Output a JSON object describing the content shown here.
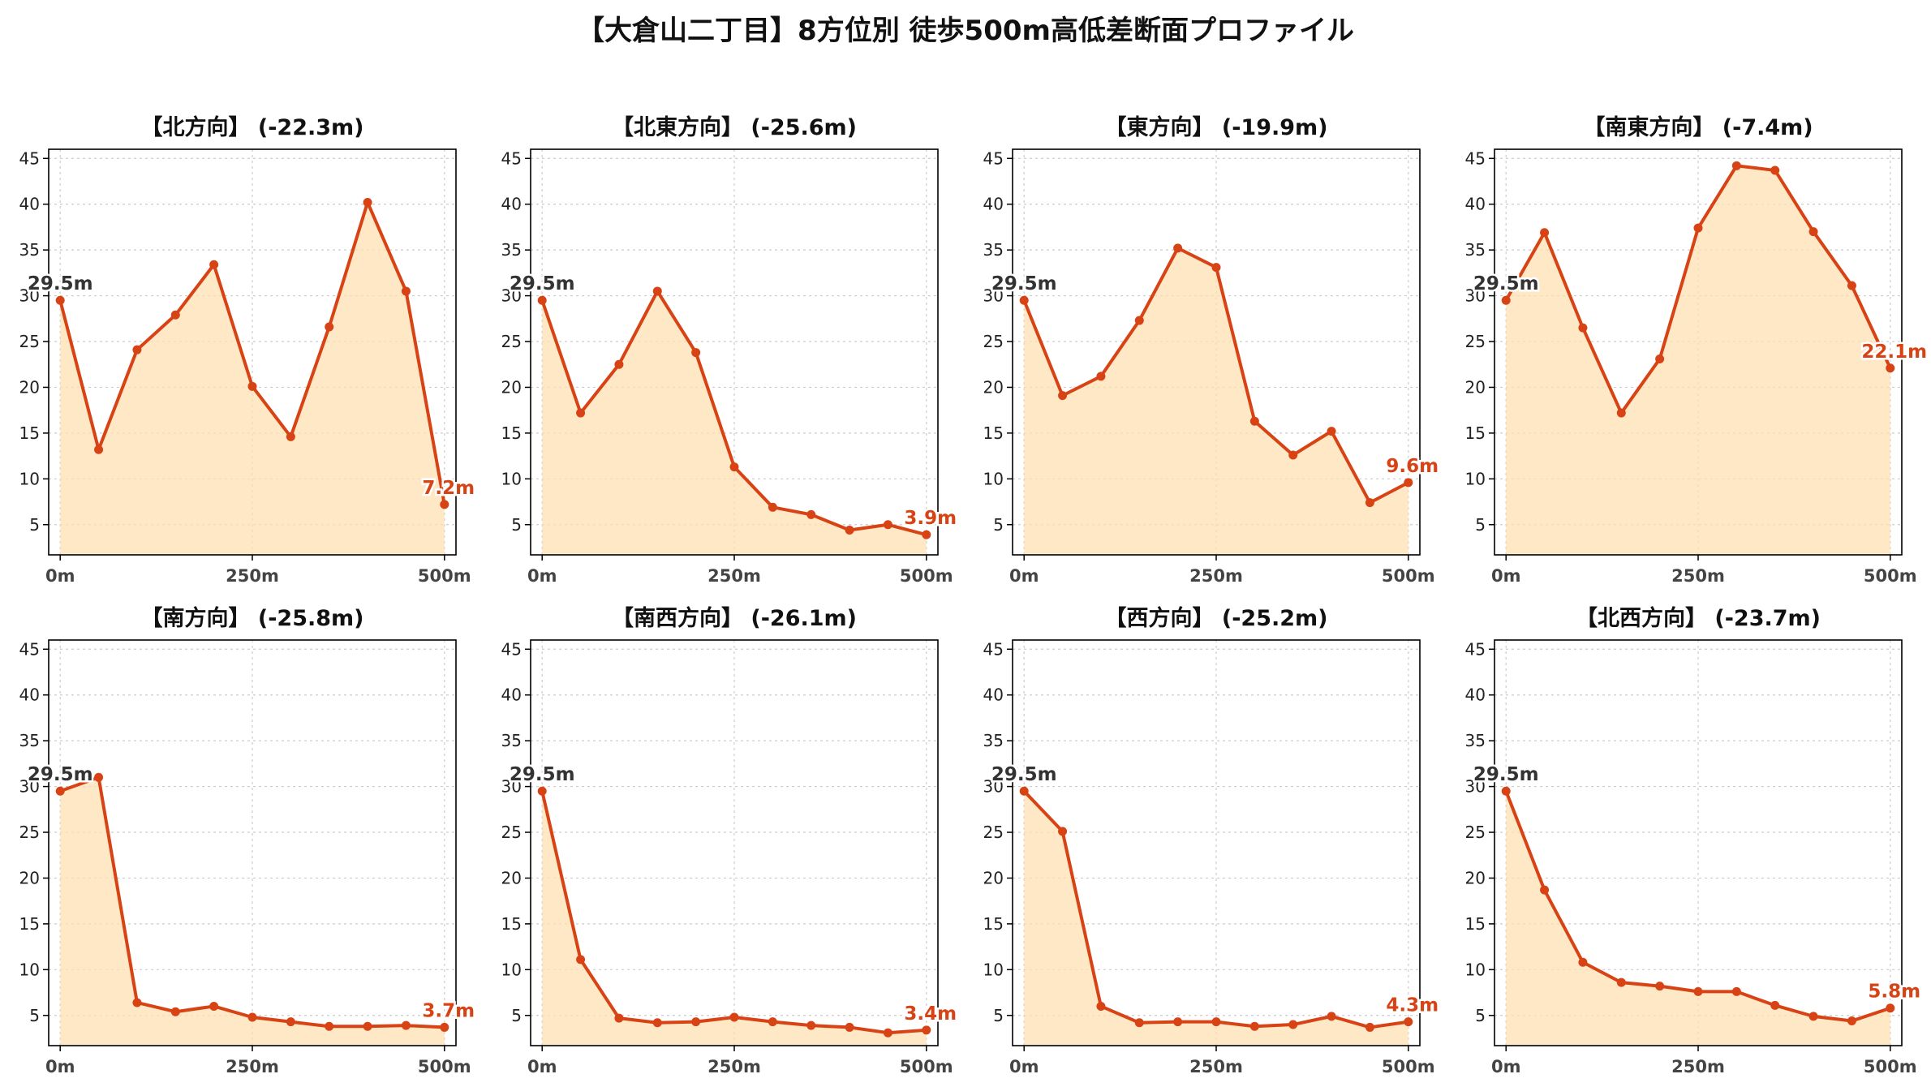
{
  "figure": {
    "title": "【大倉山二丁目】8方位別 徒歩500m高低差断面プロファイル"
  },
  "colors": {
    "line": "#d84315",
    "fill": "#ffe0b2",
    "start_label": "#333333",
    "end_label": "#d84315",
    "grid": "#cccccc"
  },
  "chart_data": [
    {
      "type": "area",
      "title": "【北方向】 (-22.3m)",
      "x": [
        0,
        50,
        100,
        150,
        200,
        250,
        300,
        350,
        400,
        450,
        500
      ],
      "values": [
        29.5,
        13.2,
        24.1,
        27.9,
        33.4,
        20.1,
        14.6,
        26.6,
        40.2,
        30.5,
        7.2
      ],
      "start_label": "29.5m",
      "end_label": "7.2m",
      "xticks": [
        0,
        250,
        500
      ],
      "xtick_labels": [
        "0m",
        "250m",
        "500m"
      ],
      "yticks": [
        5,
        10,
        15,
        20,
        25,
        30,
        35,
        40,
        45
      ],
      "xlim": [
        -15,
        515
      ],
      "ylim": [
        1.7,
        46
      ],
      "grid": true
    },
    {
      "type": "area",
      "title": "【北東方向】 (-25.6m)",
      "x": [
        0,
        50,
        100,
        150,
        200,
        250,
        300,
        350,
        400,
        450,
        500
      ],
      "values": [
        29.5,
        17.2,
        22.5,
        30.5,
        23.8,
        11.3,
        6.9,
        6.1,
        4.4,
        5.0,
        3.9
      ],
      "start_label": "29.5m",
      "end_label": "3.9m",
      "xticks": [
        0,
        250,
        500
      ],
      "xtick_labels": [
        "0m",
        "250m",
        "500m"
      ],
      "yticks": [
        5,
        10,
        15,
        20,
        25,
        30,
        35,
        40,
        45
      ],
      "xlim": [
        -15,
        515
      ],
      "ylim": [
        1.7,
        46
      ],
      "grid": true
    },
    {
      "type": "area",
      "title": "【東方向】 (-19.9m)",
      "x": [
        0,
        50,
        100,
        150,
        200,
        250,
        300,
        350,
        400,
        450,
        500
      ],
      "values": [
        29.5,
        19.1,
        21.2,
        27.3,
        35.2,
        33.1,
        16.3,
        12.6,
        15.2,
        7.4,
        9.6
      ],
      "start_label": "29.5m",
      "end_label": "9.6m",
      "xticks": [
        0,
        250,
        500
      ],
      "xtick_labels": [
        "0m",
        "250m",
        "500m"
      ],
      "yticks": [
        5,
        10,
        15,
        20,
        25,
        30,
        35,
        40,
        45
      ],
      "xlim": [
        -15,
        515
      ],
      "ylim": [
        1.7,
        46
      ],
      "grid": true
    },
    {
      "type": "area",
      "title": "【南東方向】 (-7.4m)",
      "x": [
        0,
        50,
        100,
        150,
        200,
        250,
        300,
        350,
        400,
        450,
        500
      ],
      "values": [
        29.5,
        36.9,
        26.5,
        17.2,
        23.1,
        37.4,
        44.2,
        43.7,
        37.0,
        31.1,
        22.1
      ],
      "start_label": "29.5m",
      "end_label": "22.1m",
      "xticks": [
        0,
        250,
        500
      ],
      "xtick_labels": [
        "0m",
        "250m",
        "500m"
      ],
      "yticks": [
        5,
        10,
        15,
        20,
        25,
        30,
        35,
        40,
        45
      ],
      "xlim": [
        -15,
        515
      ],
      "ylim": [
        1.7,
        46
      ],
      "grid": true
    },
    {
      "type": "area",
      "title": "【南方向】 (-25.8m)",
      "x": [
        0,
        50,
        100,
        150,
        200,
        250,
        300,
        350,
        400,
        450,
        500
      ],
      "values": [
        29.5,
        31.0,
        6.4,
        5.4,
        6.0,
        4.8,
        4.3,
        3.8,
        3.8,
        3.9,
        3.7
      ],
      "start_label": "29.5m",
      "end_label": "3.7m",
      "xticks": [
        0,
        250,
        500
      ],
      "xtick_labels": [
        "0m",
        "250m",
        "500m"
      ],
      "yticks": [
        5,
        10,
        15,
        20,
        25,
        30,
        35,
        40,
        45
      ],
      "xlim": [
        -15,
        515
      ],
      "ylim": [
        1.7,
        46
      ],
      "grid": true
    },
    {
      "type": "area",
      "title": "【南西方向】 (-26.1m)",
      "x": [
        0,
        50,
        100,
        150,
        200,
        250,
        300,
        350,
        400,
        450,
        500
      ],
      "values": [
        29.5,
        11.1,
        4.7,
        4.2,
        4.3,
        4.8,
        4.3,
        3.9,
        3.7,
        3.1,
        3.4
      ],
      "start_label": "29.5m",
      "end_label": "3.4m",
      "xticks": [
        0,
        250,
        500
      ],
      "xtick_labels": [
        "0m",
        "250m",
        "500m"
      ],
      "yticks": [
        5,
        10,
        15,
        20,
        25,
        30,
        35,
        40,
        45
      ],
      "xlim": [
        -15,
        515
      ],
      "ylim": [
        1.7,
        46
      ],
      "grid": true
    },
    {
      "type": "area",
      "title": "【西方向】 (-25.2m)",
      "x": [
        0,
        50,
        100,
        150,
        200,
        250,
        300,
        350,
        400,
        450,
        500
      ],
      "values": [
        29.5,
        25.1,
        6.0,
        4.2,
        4.3,
        4.3,
        3.8,
        4.0,
        4.9,
        3.7,
        4.3
      ],
      "start_label": "29.5m",
      "end_label": "4.3m",
      "xticks": [
        0,
        250,
        500
      ],
      "xtick_labels": [
        "0m",
        "250m",
        "500m"
      ],
      "yticks": [
        5,
        10,
        15,
        20,
        25,
        30,
        35,
        40,
        45
      ],
      "xlim": [
        -15,
        515
      ],
      "ylim": [
        1.7,
        46
      ],
      "grid": true
    },
    {
      "type": "area",
      "title": "【北西方向】 (-23.7m)",
      "x": [
        0,
        50,
        100,
        150,
        200,
        250,
        300,
        350,
        400,
        450,
        500
      ],
      "values": [
        29.5,
        18.7,
        10.8,
        8.6,
        8.2,
        7.6,
        7.6,
        6.1,
        4.9,
        4.4,
        5.8
      ],
      "start_label": "29.5m",
      "end_label": "5.8m",
      "xticks": [
        0,
        250,
        500
      ],
      "xtick_labels": [
        "0m",
        "250m",
        "500m"
      ],
      "yticks": [
        5,
        10,
        15,
        20,
        25,
        30,
        35,
        40,
        45
      ],
      "xlim": [
        -15,
        515
      ],
      "ylim": [
        1.7,
        46
      ],
      "grid": true
    }
  ]
}
